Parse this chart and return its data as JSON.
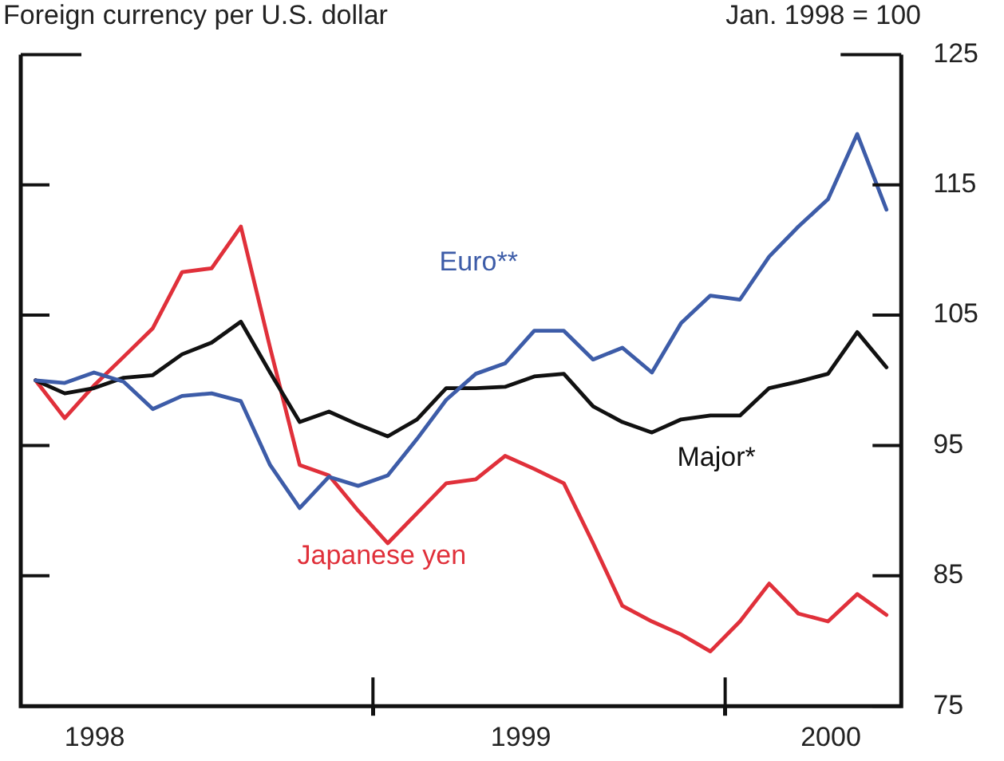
{
  "chart_data": {
    "type": "line",
    "title": "Foreign currency per U.S. dollar",
    "subtitle": "Jan. 1998 = 100",
    "x": [
      1998.042,
      1998.125,
      1998.208,
      1998.292,
      1998.375,
      1998.458,
      1998.542,
      1998.625,
      1998.708,
      1998.792,
      1998.875,
      1998.958,
      1999.042,
      1999.125,
      1999.208,
      1999.292,
      1999.375,
      1999.458,
      1999.542,
      1999.625,
      1999.708,
      1999.792,
      1999.875,
      1999.958,
      2000.042,
      2000.125,
      2000.208,
      2000.292,
      2000.375,
      2000.458
    ],
    "series": [
      {
        "name": "Euro**",
        "color": "#3d5ca8",
        "values": [
          100,
          99.8,
          100.6,
          99.9,
          97.8,
          98.8,
          99.0,
          98.4,
          93.5,
          90.2,
          92.6,
          91.9,
          92.7,
          95.5,
          98.5,
          100.5,
          101.3,
          103.8,
          103.8,
          101.6,
          102.5,
          100.6,
          104.4,
          106.5,
          106.2,
          109.5,
          111.8,
          113.9,
          118.9,
          113.1
        ]
      },
      {
        "name": "Major*",
        "color": "#111111",
        "values": [
          100,
          99.0,
          99.4,
          100.2,
          100.4,
          102.0,
          102.9,
          104.5,
          100.6,
          96.8,
          97.6,
          96.6,
          95.7,
          97.0,
          99.4,
          99.4,
          99.5,
          100.3,
          100.5,
          98.0,
          96.8,
          96.0,
          97.0,
          97.3,
          97.3,
          99.4,
          99.9,
          100.5,
          103.7,
          101.0
        ]
      },
      {
        "name": "Japanese yen",
        "color": "#e0303a",
        "values": [
          100,
          97.1,
          99.6,
          101.8,
          104.0,
          108.3,
          108.6,
          111.8,
          102.5,
          93.5,
          92.7,
          90.0,
          87.5,
          89.8,
          92.1,
          92.4,
          94.2,
          93.2,
          92.1,
          87.5,
          82.7,
          81.5,
          80.5,
          79.2,
          81.5,
          84.4,
          82.1,
          81.5,
          83.6,
          82.0
        ]
      }
    ],
    "xlim": [
      1998,
      2000.5
    ],
    "xticks": [
      {
        "value": 1998.21,
        "label": "1998"
      },
      {
        "value": 1999,
        "label": null
      },
      {
        "value": 1999.42,
        "label": "1999"
      },
      {
        "value": 2000,
        "label": null
      },
      {
        "value": 2000.3,
        "label": "2000"
      }
    ],
    "ylim": [
      75,
      125
    ],
    "yticks": [
      75,
      85,
      95,
      105,
      115,
      125
    ],
    "grid": false,
    "legend": false,
    "marker": "none",
    "line_style": "solid"
  }
}
